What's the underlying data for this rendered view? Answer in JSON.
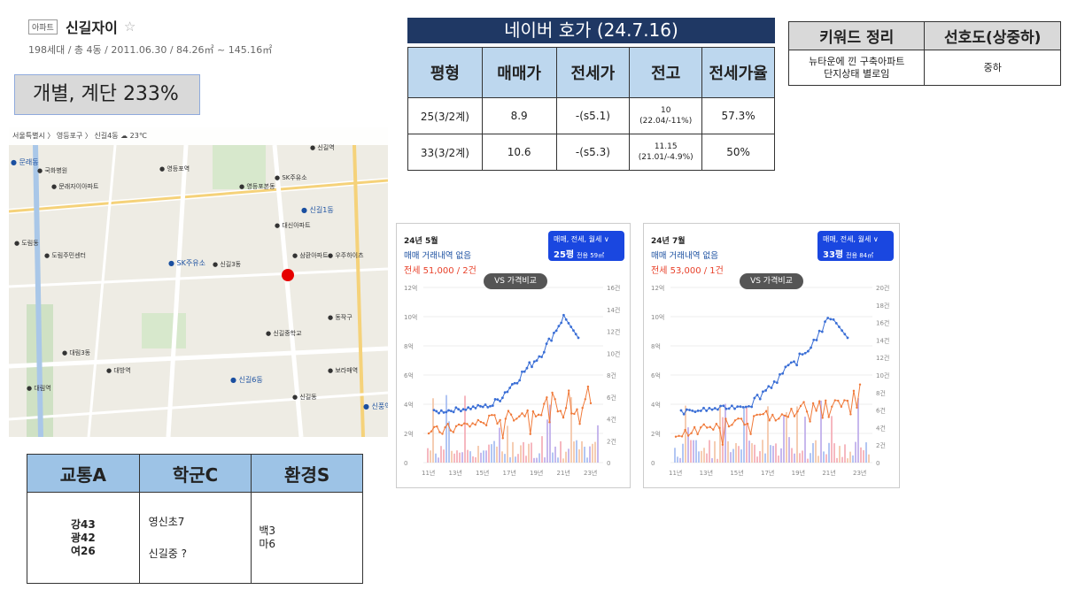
{
  "header": {
    "tag": "아파트",
    "name": "신길자이",
    "star": "☆",
    "info": "198세대 / 총 4동 / 2011.06.30 / 84.26㎡ ~ 145.16㎡"
  },
  "ratio_box": "개별, 계단 233%",
  "map": {
    "breadcrumb": "서울특별시  〉 영등포구  〉 신길4동        ☁ 23℃",
    "labels": [
      "문래동",
      "국화병원",
      "문래자이아파트",
      "영등포본동",
      "SK주유소",
      "신길1동",
      "신길역",
      "대신아파트",
      "도림동",
      "도림주민센터",
      "SK주유소",
      "신길3동",
      "삼환아파트",
      "우주하이츠",
      "대림3동",
      "신길6동",
      "영등포역",
      "신길중학교",
      "대방역",
      "보라매역",
      "신풍역",
      "신길동",
      "대림역",
      "동작구"
    ]
  },
  "naver": {
    "title": "네이버 호가 (24.7.16)",
    "headers": [
      "평형",
      "매매가",
      "전세가",
      "전고",
      "전세가율"
    ],
    "rows": [
      {
        "type": "25(3/2계)",
        "sale": "8.9",
        "jeonse": "-(s5.1)",
        "high_a": "10",
        "high_b": "(22.04/-11%)",
        "rate": "57.3%"
      },
      {
        "type": "33(3/2계)",
        "sale": "10.6",
        "jeonse": "-(s5.3)",
        "high_a": "11.15",
        "high_b": "(21.01/-4.9%)",
        "rate": "50%"
      }
    ]
  },
  "keyword": {
    "headers": [
      "키워드 정리",
      "선호도(상중하)"
    ],
    "summary_line1": "뉴타운에 낀 구축아파트",
    "summary_line2": "단지상태 별로임",
    "grade": "중하"
  },
  "charts": [
    {
      "month": "24년 5월",
      "no_deal": "매매 거래내역 없음",
      "jeonse": "전세 51,000 / 2건",
      "dropdown": "매매, 전세, 월세 ∨",
      "pyeong": "25평",
      "area": "전용 59㎡",
      "vs": "VS 가격비교",
      "left_ticks": [
        "12억",
        "10억",
        "8억",
        "6억",
        "4억",
        "2억",
        "0"
      ],
      "right_ticks": [
        "16건",
        "14건",
        "12건",
        "10건",
        "8건",
        "6건",
        "4건",
        "2건",
        "0"
      ],
      "x_ticks": [
        "11년",
        "13년",
        "15년",
        "17년",
        "19년",
        "21년",
        "23년"
      ]
    },
    {
      "month": "24년 7월",
      "no_deal": "매매 거래내역 없음",
      "jeonse": "전세 53,000 / 1건",
      "dropdown": "매매, 전세, 월세 ∨",
      "pyeong": "33평",
      "area": "전용 84㎡",
      "vs": "VS 가격비교",
      "left_ticks": [
        "12억",
        "10억",
        "8억",
        "6억",
        "4억",
        "2억",
        "0"
      ],
      "right_ticks": [
        "20건",
        "18건",
        "16건",
        "14건",
        "12건",
        "10건",
        "8건",
        "6건",
        "4건",
        "2건",
        "0"
      ],
      "x_ticks": [
        "11년",
        "13년",
        "15년",
        "17년",
        "19년",
        "21년",
        "23년"
      ]
    }
  ],
  "score": {
    "headers": [
      "교통A",
      "학군C",
      "환경S"
    ],
    "transport": [
      "강43",
      "광42",
      "여26"
    ],
    "school": [
      "영신초7",
      "신길중 ?"
    ],
    "env": [
      "백3",
      "마6"
    ]
  },
  "colors": {
    "navy": "#1f3864",
    "header_blue": "#bdd7ee",
    "score_blue": "#9dc3e6",
    "sale_line": "#3b6fd6",
    "jeonse_line": "#f07a3a",
    "marker": "#e60000"
  }
}
